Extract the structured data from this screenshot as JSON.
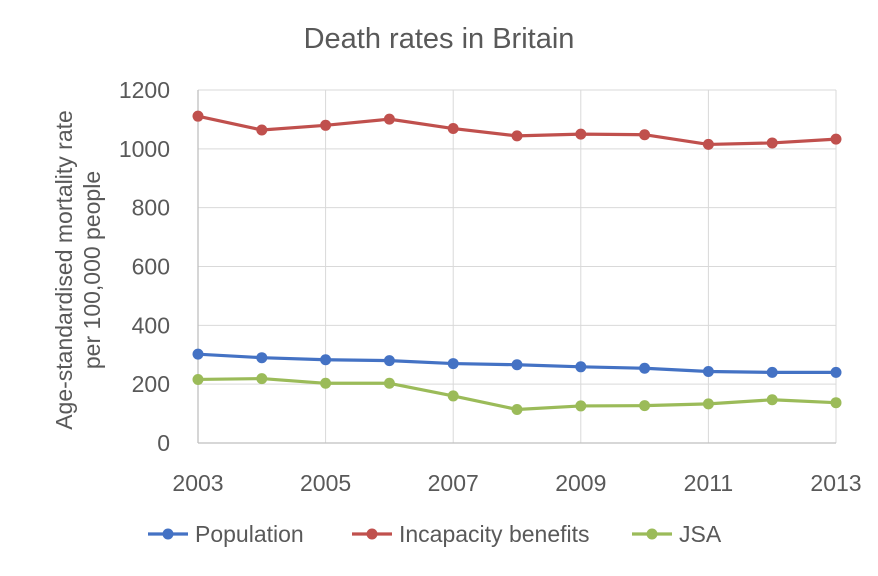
{
  "chart_data": {
    "type": "line",
    "title": "Death rates in Britain",
    "xlabel": "",
    "ylabel_lines": [
      "Age-standardised mortality rate",
      "per 100,000 people"
    ],
    "x": [
      2003,
      2004,
      2005,
      2006,
      2007,
      2008,
      2009,
      2010,
      2011,
      2012,
      2013
    ],
    "x_tick_labels": [
      "2003",
      "2005",
      "2007",
      "2009",
      "2011",
      "2013"
    ],
    "y_tick_labels": [
      "0",
      "200",
      "400",
      "600",
      "800",
      "1000",
      "1200"
    ],
    "xlim": [
      2003,
      2013
    ],
    "ylim": [
      0,
      1200
    ],
    "grid": true,
    "legend_position": "bottom",
    "series": [
      {
        "name": "Population",
        "color": "#4472C4",
        "values": [
          302,
          290,
          283,
          280,
          270,
          266,
          259,
          254,
          243,
          240,
          240
        ]
      },
      {
        "name": "Incapacity benefits",
        "color": "#C0504D",
        "values": [
          1111,
          1064,
          1080,
          1101,
          1069,
          1044,
          1050,
          1048,
          1015,
          1020,
          1033
        ]
      },
      {
        "name": "JSA",
        "color": "#9BBB59",
        "values": [
          216,
          219,
          203,
          203,
          160,
          114,
          126,
          127,
          133,
          147,
          137
        ]
      }
    ]
  }
}
